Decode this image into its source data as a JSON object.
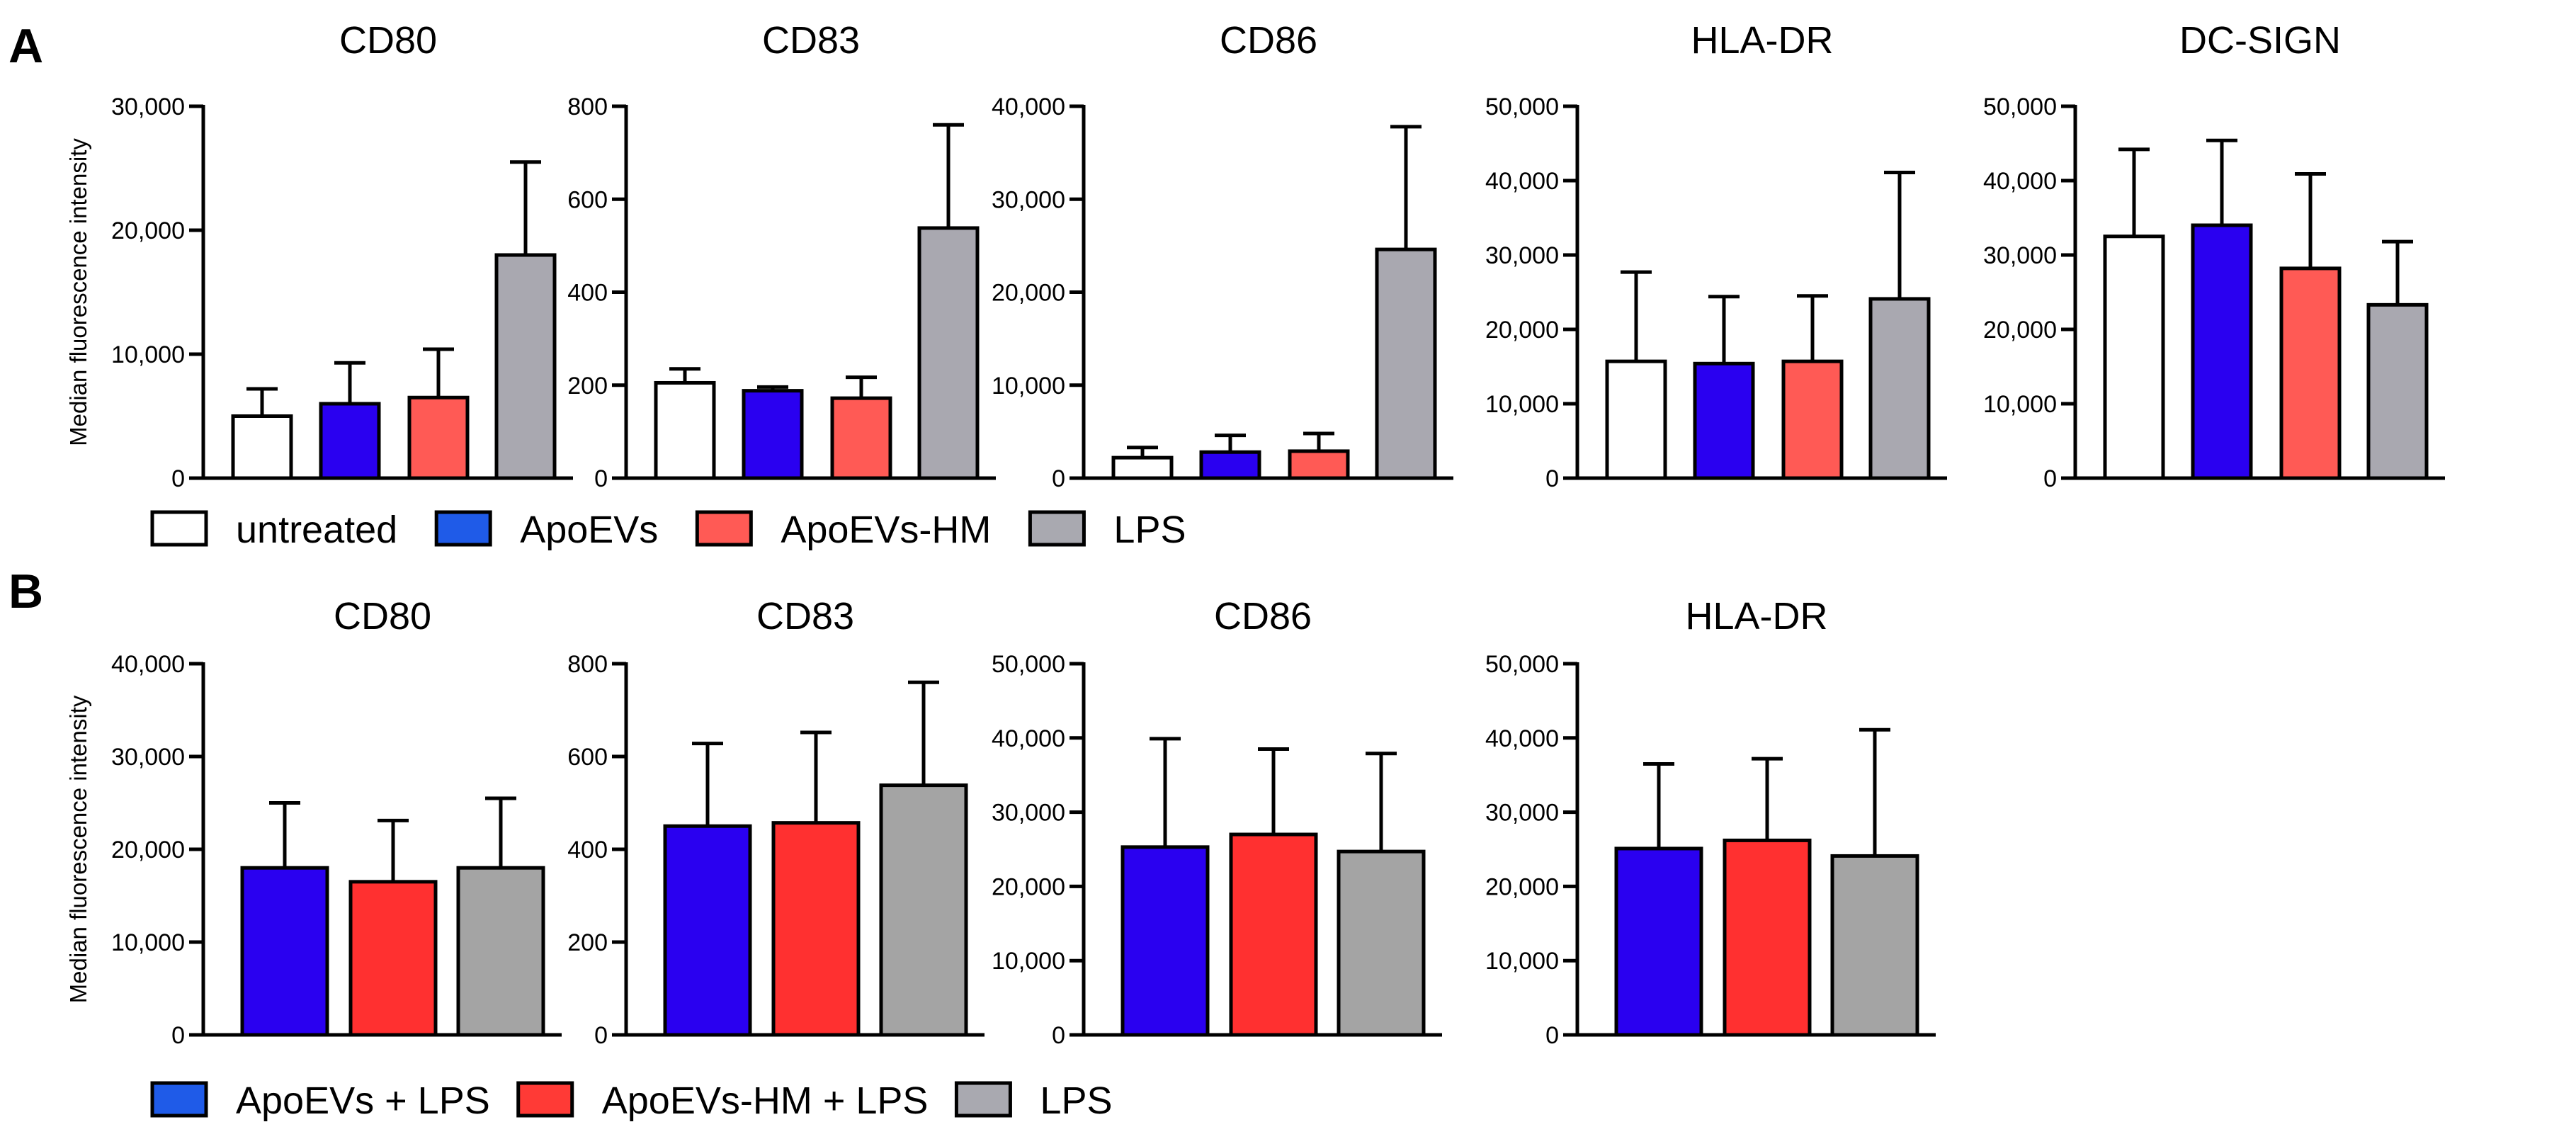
{
  "panels": {
    "a": {
      "label": "A"
    },
    "b": {
      "label": "B"
    }
  },
  "legend_a": [
    {
      "label": "untreated",
      "color": "#ffffff"
    },
    {
      "label": "ApoEVs",
      "color": "#1f5be8"
    },
    {
      "label": "ApoEVs-HM",
      "color": "#ff5a55"
    },
    {
      "label": "LPS",
      "color": "#a9a9b0"
    }
  ],
  "legend_b": [
    {
      "label": "ApoEVs + LPS",
      "color": "#1f5be8"
    },
    {
      "label": "ApoEVs-HM + LPS",
      "color": "#ff3a36"
    },
    {
      "label": "LPS",
      "color": "#a9a9b0"
    }
  ],
  "chart_data": [
    {
      "panel": "A",
      "type": "bar",
      "title": "CD80",
      "ylabel": "Median fluorescence intensity",
      "ylim": [
        0,
        30000
      ],
      "yticks": [
        0,
        10000,
        20000,
        30000
      ],
      "ytick_labels": [
        "0",
        "10,000",
        "20,000",
        "30,000"
      ],
      "categories": [
        "untreated",
        "ApoEVs",
        "ApoEVs-HM",
        "LPS"
      ],
      "colors": [
        "#ffffff",
        "#2a00f0",
        "#ff5a55",
        "#a9a8b0"
      ],
      "values": [
        5000,
        6000,
        6500,
        18000
      ],
      "errors": [
        2200,
        3300,
        3900,
        7500
      ]
    },
    {
      "panel": "A",
      "type": "bar",
      "title": "CD83",
      "ylabel": "",
      "ylim": [
        0,
        800
      ],
      "yticks": [
        0,
        200,
        400,
        600,
        800
      ],
      "ytick_labels": [
        "0",
        "200",
        "400",
        "600",
        "800"
      ],
      "categories": [
        "untreated",
        "ApoEVs",
        "ApoEVs-HM",
        "LPS"
      ],
      "colors": [
        "#ffffff",
        "#2a00f0",
        "#ff5a55",
        "#a9a8b0"
      ],
      "values": [
        205,
        188,
        172,
        538
      ],
      "errors": [
        30,
        8,
        45,
        222
      ]
    },
    {
      "panel": "A",
      "type": "bar",
      "title": "CD86",
      "ylabel": "",
      "ylim": [
        0,
        40000
      ],
      "yticks": [
        0,
        10000,
        20000,
        30000,
        40000
      ],
      "ytick_labels": [
        "0",
        "10,000",
        "20,000",
        "30,000",
        "40,000"
      ],
      "categories": [
        "untreated",
        "ApoEVs",
        "ApoEVs-HM",
        "LPS"
      ],
      "colors": [
        "#ffffff",
        "#2a00f0",
        "#ff5a55",
        "#a9a8b0"
      ],
      "values": [
        2200,
        2800,
        2900,
        24600
      ],
      "errors": [
        1100,
        1800,
        1900,
        13200
      ]
    },
    {
      "panel": "A",
      "type": "bar",
      "title": "HLA-DR",
      "ylabel": "",
      "ylim": [
        0,
        50000
      ],
      "yticks": [
        0,
        10000,
        20000,
        30000,
        40000,
        50000
      ],
      "ytick_labels": [
        "0",
        "10,000",
        "20,000",
        "30,000",
        "40,000",
        "50,000"
      ],
      "categories": [
        "untreated",
        "ApoEVs",
        "ApoEVs-HM",
        "LPS"
      ],
      "colors": [
        "#ffffff",
        "#2a00f0",
        "#ff5a55",
        "#a9a8b0"
      ],
      "values": [
        15700,
        15400,
        15700,
        24100
      ],
      "errors": [
        12000,
        9000,
        8800,
        17000
      ]
    },
    {
      "panel": "A",
      "type": "bar",
      "title": "DC-SIGN",
      "ylabel": "",
      "ylim": [
        0,
        50000
      ],
      "yticks": [
        0,
        10000,
        20000,
        30000,
        40000,
        50000
      ],
      "ytick_labels": [
        "0",
        "10,000",
        "20,000",
        "30,000",
        "40,000",
        "50,000"
      ],
      "categories": [
        "untreated",
        "ApoEVs",
        "ApoEVs-HM",
        "LPS"
      ],
      "colors": [
        "#ffffff",
        "#2a00f0",
        "#ff5a55",
        "#a9a8b0"
      ],
      "values": [
        32500,
        34000,
        28200,
        23300
      ],
      "errors": [
        11700,
        11400,
        12700,
        8500
      ]
    },
    {
      "panel": "B",
      "type": "bar",
      "title": "CD80",
      "ylabel": "Median fluorescence intensity",
      "ylim": [
        0,
        40000
      ],
      "yticks": [
        0,
        10000,
        20000,
        30000,
        40000
      ],
      "ytick_labels": [
        "0",
        "10,000",
        "20,000",
        "30,000",
        "40,000"
      ],
      "categories": [
        "ApoEVs + LPS",
        "ApoEVs-HM + LPS",
        "LPS"
      ],
      "colors": [
        "#2a00f0",
        "#ff3030",
        "#a4a4a4"
      ],
      "values": [
        18000,
        16500,
        18000
      ],
      "errors": [
        7000,
        6600,
        7500
      ]
    },
    {
      "panel": "B",
      "type": "bar",
      "title": "CD83",
      "ylabel": "",
      "ylim": [
        0,
        800
      ],
      "yticks": [
        0,
        200,
        400,
        600,
        800
      ],
      "ytick_labels": [
        "0",
        "200",
        "400",
        "600",
        "800"
      ],
      "categories": [
        "ApoEVs + LPS",
        "ApoEVs-HM + LPS",
        "LPS"
      ],
      "colors": [
        "#2a00f0",
        "#ff3030",
        "#a4a4a4"
      ],
      "values": [
        450,
        457,
        538
      ],
      "errors": [
        178,
        195,
        222
      ]
    },
    {
      "panel": "B",
      "type": "bar",
      "title": "CD86",
      "ylabel": "",
      "ylim": [
        0,
        50000
      ],
      "yticks": [
        0,
        10000,
        20000,
        30000,
        40000,
        50000
      ],
      "ytick_labels": [
        "0",
        "10,000",
        "20,000",
        "30,000",
        "40,000",
        "50,000"
      ],
      "categories": [
        "ApoEVs + LPS",
        "ApoEVs-HM + LPS",
        "LPS"
      ],
      "colors": [
        "#2a00f0",
        "#ff3030",
        "#a4a4a4"
      ],
      "values": [
        25300,
        27000,
        24700
      ],
      "errors": [
        14600,
        11500,
        13200
      ]
    },
    {
      "panel": "B",
      "type": "bar",
      "title": "HLA-DR",
      "ylabel": "",
      "ylim": [
        0,
        50000
      ],
      "yticks": [
        0,
        10000,
        20000,
        30000,
        40000,
        50000
      ],
      "ytick_labels": [
        "0",
        "10,000",
        "20,000",
        "30,000",
        "40,000",
        "50,000"
      ],
      "categories": [
        "ApoEVs + LPS",
        "ApoEVs-HM + LPS",
        "LPS"
      ],
      "colors": [
        "#2a00f0",
        "#ff3030",
        "#a4a4a4"
      ],
      "values": [
        25100,
        26200,
        24100
      ],
      "errors": [
        11400,
        11000,
        17000
      ]
    }
  ]
}
